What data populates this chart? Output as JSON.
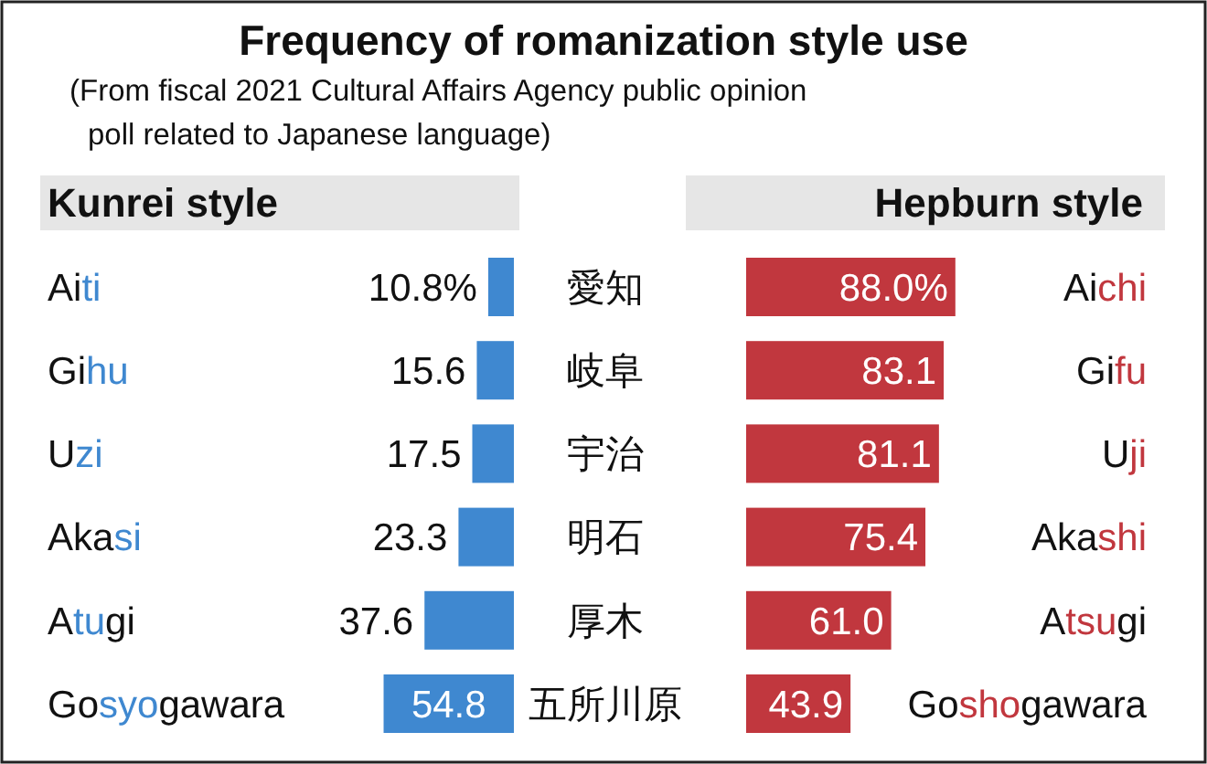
{
  "chart_data": [
    {
      "type": "other",
      "title": "Frequency of romanization style use",
      "subtitle": "(From fiscal 2021 Cultural Affairs Agency public opinion\npoll related to Japanese language)"
    },
    {
      "type": "bar",
      "orientation": "horizontal",
      "title": "Kunrei style",
      "categories": [
        "Aiti",
        "Gihu",
        "Uzi",
        "Akasi",
        "Atugi",
        "Gosyogawara"
      ],
      "values": [
        10.8,
        15.6,
        17.5,
        23.3,
        37.6,
        54.8
      ],
      "color": "#3f88d0",
      "value_labels": [
        "10.8%",
        "15.6",
        "17.5",
        "23.3",
        "37.6",
        "54.8"
      ],
      "tick_labels": "y"
    },
    {
      "type": "other",
      "annotations": [
        "愛知",
        "岐阜",
        "宇治",
        "明石",
        "厚木",
        "五所川原"
      ]
    },
    {
      "type": "bar",
      "orientation": "horizontal",
      "title": "Hepburn style",
      "categories": [
        "Aichi",
        "Gifu",
        "Uji",
        "Akashi",
        "Atsugi",
        "Goshogawara"
      ],
      "values": [
        88.0,
        83.1,
        81.1,
        75.4,
        61.0,
        43.9
      ],
      "color": "#c1373e",
      "value_labels": [
        "88.0%",
        "83.1",
        "81.1",
        "75.4",
        "61.0",
        "43.9"
      ],
      "tick_labels": "y"
    }
  ]
}
